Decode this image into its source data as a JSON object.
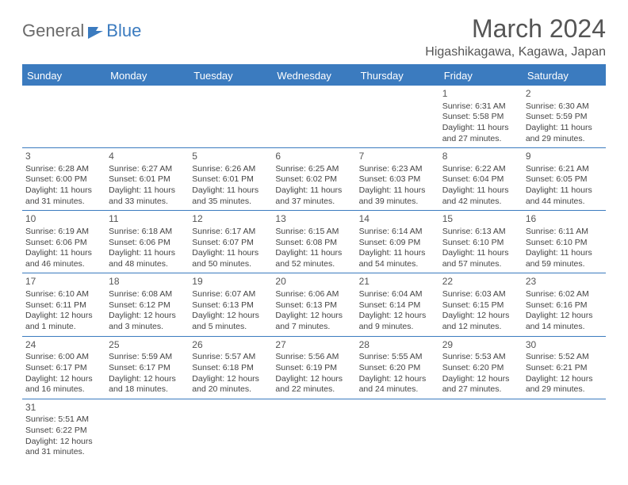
{
  "logo": {
    "general": "General",
    "blue": "Blue"
  },
  "title": "March 2024",
  "subtitle": "Higashikagawa, Kagawa, Japan",
  "colors": {
    "accent": "#3b7bbf",
    "text": "#444444",
    "header_text": "#ffffff",
    "logo_gray": "#6a6a6a",
    "background": "#ffffff"
  },
  "days_of_week": [
    "Sunday",
    "Monday",
    "Tuesday",
    "Wednesday",
    "Thursday",
    "Friday",
    "Saturday"
  ],
  "weeks": [
    [
      null,
      null,
      null,
      null,
      null,
      {
        "n": "1",
        "sr": "Sunrise: 6:31 AM",
        "ss": "Sunset: 5:58 PM",
        "d1": "Daylight: 11 hours",
        "d2": "and 27 minutes."
      },
      {
        "n": "2",
        "sr": "Sunrise: 6:30 AM",
        "ss": "Sunset: 5:59 PM",
        "d1": "Daylight: 11 hours",
        "d2": "and 29 minutes."
      }
    ],
    [
      {
        "n": "3",
        "sr": "Sunrise: 6:28 AM",
        "ss": "Sunset: 6:00 PM",
        "d1": "Daylight: 11 hours",
        "d2": "and 31 minutes."
      },
      {
        "n": "4",
        "sr": "Sunrise: 6:27 AM",
        "ss": "Sunset: 6:01 PM",
        "d1": "Daylight: 11 hours",
        "d2": "and 33 minutes."
      },
      {
        "n": "5",
        "sr": "Sunrise: 6:26 AM",
        "ss": "Sunset: 6:01 PM",
        "d1": "Daylight: 11 hours",
        "d2": "and 35 minutes."
      },
      {
        "n": "6",
        "sr": "Sunrise: 6:25 AM",
        "ss": "Sunset: 6:02 PM",
        "d1": "Daylight: 11 hours",
        "d2": "and 37 minutes."
      },
      {
        "n": "7",
        "sr": "Sunrise: 6:23 AM",
        "ss": "Sunset: 6:03 PM",
        "d1": "Daylight: 11 hours",
        "d2": "and 39 minutes."
      },
      {
        "n": "8",
        "sr": "Sunrise: 6:22 AM",
        "ss": "Sunset: 6:04 PM",
        "d1": "Daylight: 11 hours",
        "d2": "and 42 minutes."
      },
      {
        "n": "9",
        "sr": "Sunrise: 6:21 AM",
        "ss": "Sunset: 6:05 PM",
        "d1": "Daylight: 11 hours",
        "d2": "and 44 minutes."
      }
    ],
    [
      {
        "n": "10",
        "sr": "Sunrise: 6:19 AM",
        "ss": "Sunset: 6:06 PM",
        "d1": "Daylight: 11 hours",
        "d2": "and 46 minutes."
      },
      {
        "n": "11",
        "sr": "Sunrise: 6:18 AM",
        "ss": "Sunset: 6:06 PM",
        "d1": "Daylight: 11 hours",
        "d2": "and 48 minutes."
      },
      {
        "n": "12",
        "sr": "Sunrise: 6:17 AM",
        "ss": "Sunset: 6:07 PM",
        "d1": "Daylight: 11 hours",
        "d2": "and 50 minutes."
      },
      {
        "n": "13",
        "sr": "Sunrise: 6:15 AM",
        "ss": "Sunset: 6:08 PM",
        "d1": "Daylight: 11 hours",
        "d2": "and 52 minutes."
      },
      {
        "n": "14",
        "sr": "Sunrise: 6:14 AM",
        "ss": "Sunset: 6:09 PM",
        "d1": "Daylight: 11 hours",
        "d2": "and 54 minutes."
      },
      {
        "n": "15",
        "sr": "Sunrise: 6:13 AM",
        "ss": "Sunset: 6:10 PM",
        "d1": "Daylight: 11 hours",
        "d2": "and 57 minutes."
      },
      {
        "n": "16",
        "sr": "Sunrise: 6:11 AM",
        "ss": "Sunset: 6:10 PM",
        "d1": "Daylight: 11 hours",
        "d2": "and 59 minutes."
      }
    ],
    [
      {
        "n": "17",
        "sr": "Sunrise: 6:10 AM",
        "ss": "Sunset: 6:11 PM",
        "d1": "Daylight: 12 hours",
        "d2": "and 1 minute."
      },
      {
        "n": "18",
        "sr": "Sunrise: 6:08 AM",
        "ss": "Sunset: 6:12 PM",
        "d1": "Daylight: 12 hours",
        "d2": "and 3 minutes."
      },
      {
        "n": "19",
        "sr": "Sunrise: 6:07 AM",
        "ss": "Sunset: 6:13 PM",
        "d1": "Daylight: 12 hours",
        "d2": "and 5 minutes."
      },
      {
        "n": "20",
        "sr": "Sunrise: 6:06 AM",
        "ss": "Sunset: 6:13 PM",
        "d1": "Daylight: 12 hours",
        "d2": "and 7 minutes."
      },
      {
        "n": "21",
        "sr": "Sunrise: 6:04 AM",
        "ss": "Sunset: 6:14 PM",
        "d1": "Daylight: 12 hours",
        "d2": "and 9 minutes."
      },
      {
        "n": "22",
        "sr": "Sunrise: 6:03 AM",
        "ss": "Sunset: 6:15 PM",
        "d1": "Daylight: 12 hours",
        "d2": "and 12 minutes."
      },
      {
        "n": "23",
        "sr": "Sunrise: 6:02 AM",
        "ss": "Sunset: 6:16 PM",
        "d1": "Daylight: 12 hours",
        "d2": "and 14 minutes."
      }
    ],
    [
      {
        "n": "24",
        "sr": "Sunrise: 6:00 AM",
        "ss": "Sunset: 6:17 PM",
        "d1": "Daylight: 12 hours",
        "d2": "and 16 minutes."
      },
      {
        "n": "25",
        "sr": "Sunrise: 5:59 AM",
        "ss": "Sunset: 6:17 PM",
        "d1": "Daylight: 12 hours",
        "d2": "and 18 minutes."
      },
      {
        "n": "26",
        "sr": "Sunrise: 5:57 AM",
        "ss": "Sunset: 6:18 PM",
        "d1": "Daylight: 12 hours",
        "d2": "and 20 minutes."
      },
      {
        "n": "27",
        "sr": "Sunrise: 5:56 AM",
        "ss": "Sunset: 6:19 PM",
        "d1": "Daylight: 12 hours",
        "d2": "and 22 minutes."
      },
      {
        "n": "28",
        "sr": "Sunrise: 5:55 AM",
        "ss": "Sunset: 6:20 PM",
        "d1": "Daylight: 12 hours",
        "d2": "and 24 minutes."
      },
      {
        "n": "29",
        "sr": "Sunrise: 5:53 AM",
        "ss": "Sunset: 6:20 PM",
        "d1": "Daylight: 12 hours",
        "d2": "and 27 minutes."
      },
      {
        "n": "30",
        "sr": "Sunrise: 5:52 AM",
        "ss": "Sunset: 6:21 PM",
        "d1": "Daylight: 12 hours",
        "d2": "and 29 minutes."
      }
    ],
    [
      {
        "n": "31",
        "sr": "Sunrise: 5:51 AM",
        "ss": "Sunset: 6:22 PM",
        "d1": "Daylight: 12 hours",
        "d2": "and 31 minutes."
      },
      null,
      null,
      null,
      null,
      null,
      null
    ]
  ]
}
